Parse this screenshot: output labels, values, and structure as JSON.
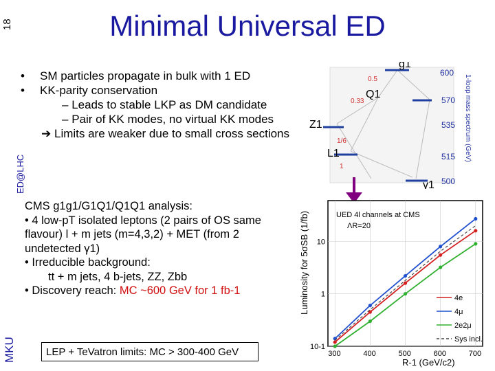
{
  "slide": {
    "number": "18",
    "title": "Minimal Universal ED",
    "side_label": "ED@LHC",
    "author": "MKU"
  },
  "bullets": [
    "SM particles propagate in bulk with 1 ED",
    "KK-parity conservation"
  ],
  "sub_bullets": [
    "Leads to stable LKP as DM candidate",
    "Pair of KK modes, no virtual KK modes"
  ],
  "limits_note": "Limits are weaker due to small cross sections",
  "analysis": {
    "heading": "CMS g1g1/G1Q1/Q1Q1 analysis:",
    "item1": "• 4 low-pT isolated leptons (2 pairs of OS same flavour) l + m jets (m=4,3,2) + MET (from 2 undetected γ1)",
    "item2": "• Irreducible background:",
    "item2_detail": "tt + m jets, 4 b-jets, ZZ, Zbb",
    "item3_prefix": "• Discovery reach: ",
    "item3_reach": "MC ~600 GeV for 1 fb-1"
  },
  "box_text": "LEP + TeVatron limits: MC > 300-400 GeV",
  "spectrum": {
    "levels": [
      {
        "label": "g1",
        "mass": "600"
      },
      {
        "label": "Q1",
        "mass": "570"
      },
      {
        "label": "Z1",
        "mass": "535"
      },
      {
        "label": "L1",
        "mass": "515"
      },
      {
        "label": "γ1",
        "mass": "500"
      }
    ],
    "branching": [
      "0.5",
      "0.33",
      "1/6",
      "1"
    ],
    "axis_label": "1-loop mass spectrum (GeV)"
  },
  "chart_data": {
    "type": "line",
    "title": "UED 4l channels at CMS",
    "subtitle": "ΛR=20",
    "xlabel": "R-1 (GeV/c2)",
    "ylabel": "Luminosity for 5σSB (1/fb)",
    "yscale": "log",
    "xlim": [
      280,
      720
    ],
    "ylim": [
      0.1,
      60
    ],
    "x_ticks": [
      "300",
      "400",
      "500",
      "600",
      "700"
    ],
    "y_ticks": [
      "10-1",
      "1",
      "10"
    ],
    "series": [
      {
        "name": "4e",
        "color": "#d42020",
        "x": [
          300,
          400,
          500,
          600,
          700
        ],
        "y": [
          0.12,
          0.45,
          1.6,
          5.5,
          16
        ]
      },
      {
        "name": "4μ",
        "color": "#2050d0",
        "x": [
          300,
          400,
          500,
          600,
          700
        ],
        "y": [
          0.14,
          0.6,
          2.2,
          8,
          27
        ]
      },
      {
        "name": "2e2μ",
        "color": "#30b030",
        "x": [
          300,
          400,
          500,
          600,
          700
        ],
        "y": [
          0.1,
          0.3,
          1.0,
          3.2,
          9
        ]
      },
      {
        "name": "Sys incl.",
        "color": "#444444",
        "dashed": true,
        "x": [
          300,
          400,
          500,
          600,
          700
        ],
        "y": [
          0.13,
          0.5,
          1.8,
          6.5,
          20
        ]
      }
    ]
  }
}
